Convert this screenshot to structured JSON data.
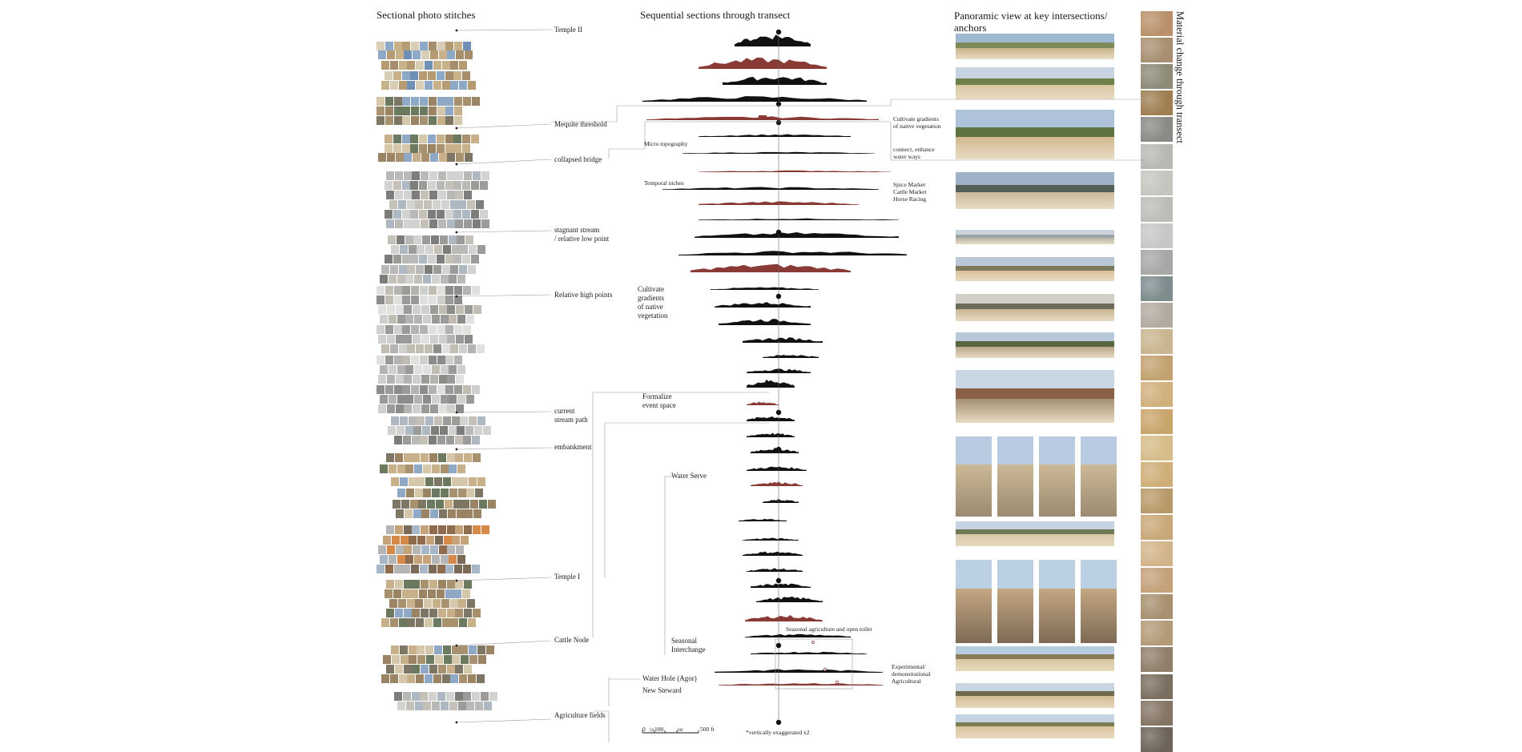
{
  "columns": {
    "stitches_title": "Sectional photo stitches",
    "sections_title": "Sequential sections through transect",
    "panorama_title": "Panoramic view at key intersections/\nanchors",
    "material_title": "Material change through transect"
  },
  "anchors": [
    {
      "label": "Temple II"
    },
    {
      "label": "Mequite threshold"
    },
    {
      "label": "collapsed bridge"
    },
    {
      "label": "stagnant stream\n/ relative low point"
    },
    {
      "label": "Relative high points"
    },
    {
      "label": "current\nstream path"
    },
    {
      "label": "embankment"
    },
    {
      "label": "Temple I"
    },
    {
      "label": "Cattle Node"
    },
    {
      "label": "Agriculture fields"
    }
  ],
  "interventions": [
    {
      "label": "Micro topography"
    },
    {
      "label": "Temporal niches"
    },
    {
      "label": "Cultivate\ngradients\nof native\nvegetation"
    },
    {
      "label": "Formalize\nevent space"
    },
    {
      "label": "Water Serve"
    },
    {
      "label": "Seasonal\nInterchange"
    },
    {
      "label": "Water Hole (Agor)"
    },
    {
      "label": "New Steward"
    }
  ],
  "right_notes": [
    {
      "label": "Cultivate gradients\nof native vegetation"
    },
    {
      "label": "connect, enhance\nwater ways"
    },
    {
      "label": "Spice Market\nCattle Market\nHorse Racing"
    },
    {
      "label": "Seasonal agriculture and open toilet"
    },
    {
      "label": "Experimental/\ndemonstrational\nAgricultural"
    }
  ],
  "scale": {
    "label_zero": "0",
    "label_unit": "100",
    "label_mid": "200",
    "label_end": "500 ft",
    "label_small": "50",
    "note": "*vertically exaggerated x2"
  },
  "colors": {
    "ink": "#111111",
    "accent_red": "#8a3a35",
    "leader": "#999999",
    "sand": "#c8b28a",
    "sky": "#8aa6c4",
    "grey": "#a7a7a5"
  },
  "section_style": [
    "black",
    "red",
    "black",
    "black",
    "red",
    "black",
    "black",
    "red",
    "black",
    "red",
    "black",
    "black",
    "black",
    "red",
    "black",
    "black",
    "black",
    "black",
    "black",
    "black",
    "black",
    "red",
    "black",
    "black",
    "black",
    "black",
    "red",
    "black",
    "black",
    "black",
    "black",
    "black",
    "black",
    "black",
    "red",
    "black",
    "black",
    "black",
    "red",
    "black",
    "black"
  ],
  "material_palette": [
    "#b9906a",
    "#a88f72",
    "#8e8a78",
    "#9f7f52",
    "#8a8a86",
    "#b8b8b4",
    "#c6c4bf",
    "#bcbcb8",
    "#c7c7c5",
    "#a7a7a5",
    "#7e8c8e",
    "#b1aaa0",
    "#c9b58f",
    "#c2a270",
    "#d0b07c",
    "#c9a56c",
    "#d6bc88",
    "#cfae78",
    "#b89a6a",
    "#c8a878",
    "#d2b48a",
    "#c4a27a",
    "#a89070",
    "#b49a78",
    "#8f7f6a",
    "#7a6e60",
    "#857565",
    "#6e645a"
  ]
}
